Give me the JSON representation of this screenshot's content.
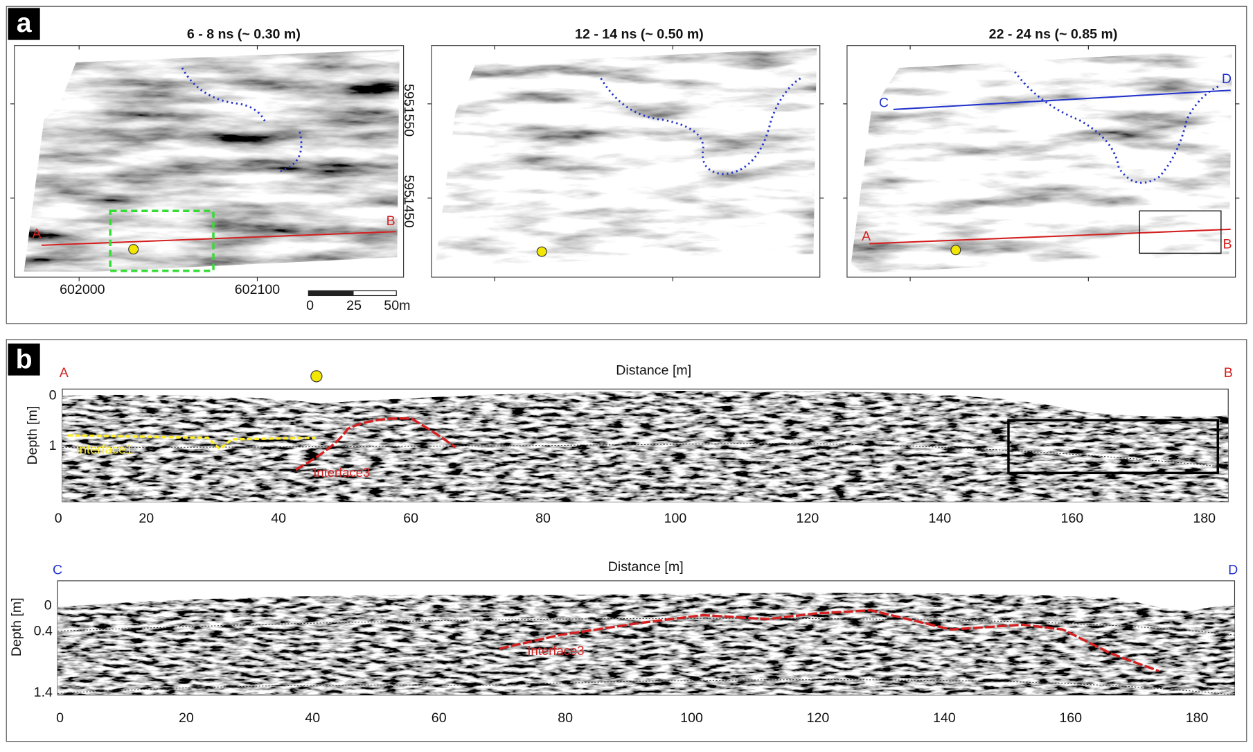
{
  "panel_a": {
    "label": "a",
    "maps": [
      {
        "title": "6 - 8 ns (~ 0.30 m)",
        "line_labels": [
          "A",
          "B"
        ]
      },
      {
        "title": "12 - 14 ns (~ 0.50 m)"
      },
      {
        "title": "22 - 24 ns (~ 0.85 m)",
        "line_labels": [
          "C",
          "D",
          "A",
          "B"
        ]
      }
    ],
    "x_ticks": [
      "602000",
      "602100"
    ],
    "y_ticks": [
      "5951550",
      "5951450"
    ],
    "scale_bar": [
      "0",
      "25",
      "50m"
    ]
  },
  "panel_b": {
    "label": "b",
    "sections": [
      {
        "start": "A",
        "end": "B",
        "x_label": "Distance [m]",
        "y_label": "Depth [m]",
        "y_ticks": [
          "0",
          "1"
        ],
        "x_ticks": [
          "0",
          "20",
          "40",
          "60",
          "80",
          "100",
          "120",
          "140",
          "160",
          "180"
        ],
        "annotations": [
          "Interface1",
          "Interface3"
        ]
      },
      {
        "start": "C",
        "end": "D",
        "x_label": "Distance [m]",
        "y_label": "Depth [m]",
        "y_ticks": [
          "0",
          "0.4",
          "1.4"
        ],
        "x_ticks": [
          "0",
          "20",
          "40",
          "60",
          "80",
          "100",
          "120",
          "140",
          "160",
          "180"
        ],
        "annotations": [
          "Interface3"
        ]
      }
    ]
  }
}
